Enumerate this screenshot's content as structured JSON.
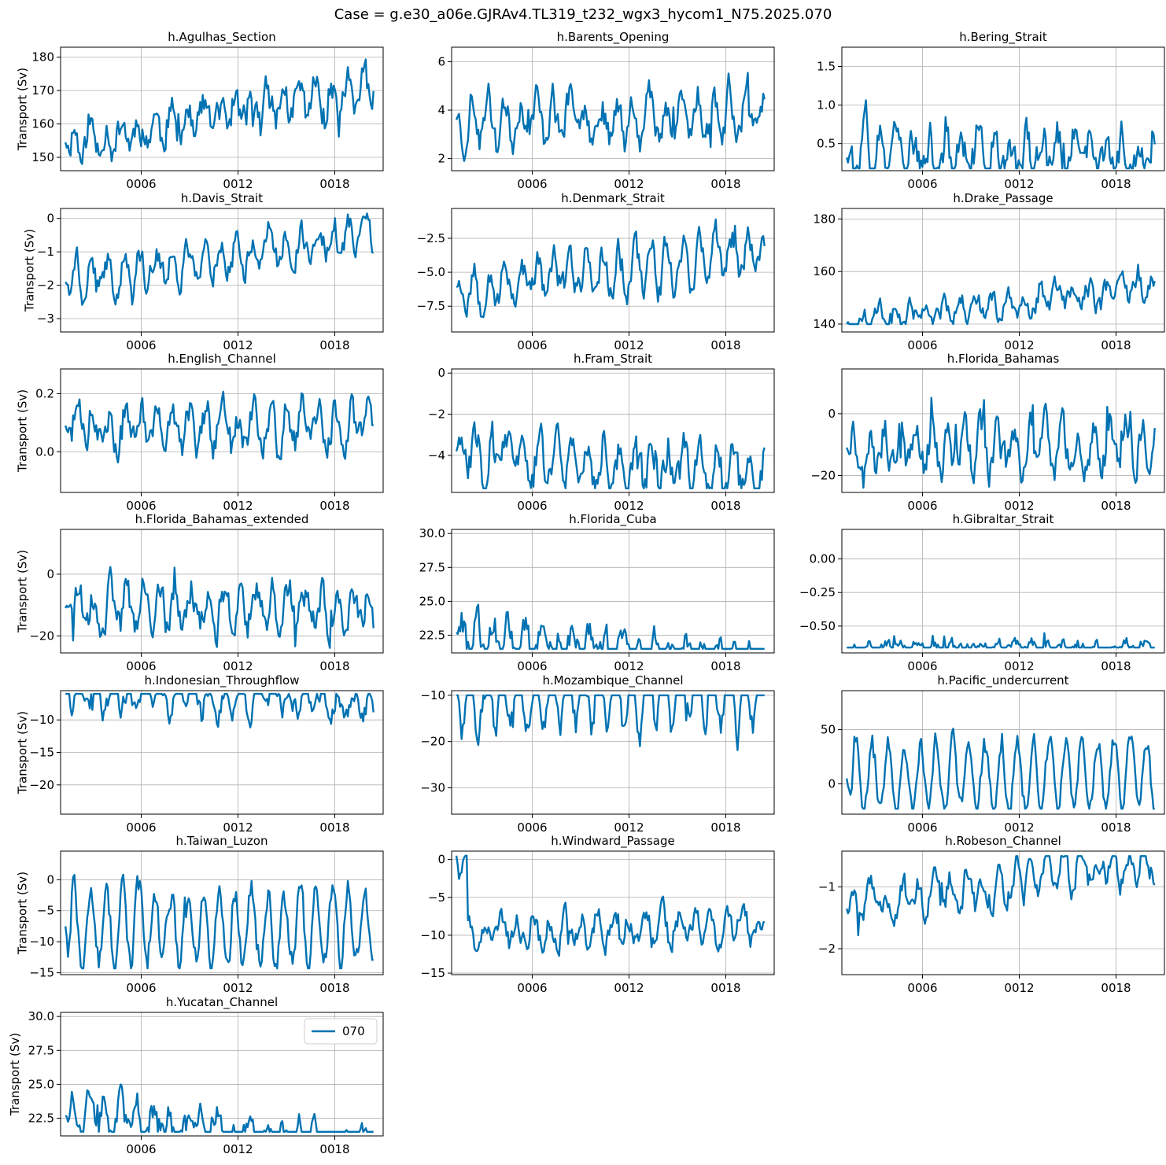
{
  "figure": {
    "suptitle": "Case = g.e30_a06e.GJRAv4.TL319_t232_wgx3_hycom1_N75.2025.070",
    "ylabel": "Transport (Sv)",
    "legend": {
      "label": "070",
      "color": "#0072b2",
      "placement": "upper right of h.Yucatan_Channel panel"
    },
    "line_color": "#0072b2",
    "grid_color": "#b0b0b0"
  },
  "chart_data": [
    {
      "type": "line",
      "title": "h.Agulhas_Section",
      "ylabel": "Transport (Sv)",
      "x_range": [
        1,
        21
      ],
      "xticks": [
        {
          "value": 6,
          "label": "0006"
        },
        {
          "value": 12,
          "label": "0012"
        },
        {
          "value": 18,
          "label": "0018"
        }
      ],
      "ylim": [
        146,
        183
      ],
      "yticks": [
        {
          "value": 150,
          "label": "150"
        },
        {
          "value": 160,
          "label": "160"
        },
        {
          "value": 170,
          "label": "170"
        },
        {
          "value": 180,
          "label": "180"
        }
      ],
      "grid": true,
      "series": {
        "y0": 154.5,
        "drift": 16,
        "amp": 4,
        "noise": 4.5,
        "spike": 6,
        "seed": 11,
        "min": 148,
        "max": 182
      }
    },
    {
      "type": "line",
      "title": "h.Barents_Opening",
      "ylabel": "",
      "x_range": [
        1,
        21
      ],
      "xticks": [
        {
          "value": 6,
          "label": "0006"
        },
        {
          "value": 12,
          "label": "0012"
        },
        {
          "value": 18,
          "label": "0018"
        }
      ],
      "ylim": [
        1.5,
        6.6
      ],
      "yticks": [
        {
          "value": 2,
          "label": "2"
        },
        {
          "value": 4,
          "label": "4"
        },
        {
          "value": 6,
          "label": "6"
        }
      ],
      "grid": true,
      "series": {
        "y0": 3.6,
        "drift": 0.3,
        "amp": 0.9,
        "noise": 0.6,
        "spike": 1.2,
        "seed": 23,
        "min": 1.7,
        "max": 6.3
      }
    },
    {
      "type": "line",
      "title": "h.Bering_Strait",
      "ylabel": "",
      "x_range": [
        1,
        21
      ],
      "xticks": [
        {
          "value": 6,
          "label": "0006"
        },
        {
          "value": 12,
          "label": "0012"
        },
        {
          "value": 18,
          "label": "0018"
        }
      ],
      "ylim": [
        0.15,
        1.75
      ],
      "yticks": [
        {
          "value": 0.5,
          "label": "0.5"
        },
        {
          "value": 1.0,
          "label": "1.0"
        },
        {
          "value": 1.5,
          "label": "1.5"
        }
      ],
      "grid": true,
      "series": {
        "y0": 0.32,
        "drift": 0.0,
        "amp": 0.25,
        "noise": 0.22,
        "spike": 0.3,
        "seed": 37,
        "min": 0.18,
        "max": 1.68
      }
    },
    {
      "type": "line",
      "title": "h.Davis_Strait",
      "ylabel": "Transport (Sv)",
      "x_range": [
        1,
        21
      ],
      "xticks": [
        {
          "value": 6,
          "label": "0006"
        },
        {
          "value": 12,
          "label": "0012"
        },
        {
          "value": 18,
          "label": "0018"
        }
      ],
      "ylim": [
        -3.4,
        0.3
      ],
      "yticks": [
        {
          "value": -3,
          "label": "−3"
        },
        {
          "value": -2,
          "label": "−2"
        },
        {
          "value": -1,
          "label": "−1"
        },
        {
          "value": 0,
          "label": "0"
        }
      ],
      "grid": true,
      "series": {
        "y0": -1.9,
        "drift": 1.5,
        "amp": 0.45,
        "noise": 0.35,
        "spike": 0.5,
        "seed": 41,
        "min": -3.3,
        "max": 0.15
      }
    },
    {
      "type": "line",
      "title": "h.Denmark_Strait",
      "ylabel": "",
      "x_range": [
        1,
        21
      ],
      "xticks": [
        {
          "value": 6,
          "label": "0006"
        },
        {
          "value": 12,
          "label": "0012"
        },
        {
          "value": 18,
          "label": "0018"
        }
      ],
      "ylim": [
        -9.4,
        -0.3
      ],
      "yticks": [
        {
          "value": -7.5,
          "label": "−7.5"
        },
        {
          "value": -5.0,
          "label": "−5.0"
        },
        {
          "value": -2.5,
          "label": "−2.5"
        }
      ],
      "grid": true,
      "series": {
        "y0": -6.1,
        "drift": 2.5,
        "amp": 1.3,
        "noise": 1.0,
        "spike": 1.4,
        "seed": 53,
        "min": -8.9,
        "max": -0.8
      }
    },
    {
      "type": "line",
      "title": "h.Drake_Passage",
      "ylabel": "",
      "x_range": [
        1,
        21
      ],
      "xticks": [
        {
          "value": 6,
          "label": "0006"
        },
        {
          "value": 12,
          "label": "0012"
        },
        {
          "value": 18,
          "label": "0018"
        }
      ],
      "ylim": [
        137,
        184
      ],
      "yticks": [
        {
          "value": 140,
          "label": "140"
        },
        {
          "value": 160,
          "label": "160"
        },
        {
          "value": 180,
          "label": "180"
        }
      ],
      "grid": true,
      "series": {
        "y0": 140,
        "drift": 14,
        "amp": 3.5,
        "noise": 3.5,
        "spike": 5,
        "seed": 61,
        "min": 140,
        "max": 181.5
      }
    },
    {
      "type": "line",
      "title": "h.English_Channel",
      "ylabel": "Transport (Sv)",
      "x_range": [
        1,
        21
      ],
      "xticks": [
        {
          "value": 6,
          "label": "0006"
        },
        {
          "value": 12,
          "label": "0012"
        },
        {
          "value": 18,
          "label": "0018"
        }
      ],
      "ylim": [
        -0.14,
        0.285
      ],
      "yticks": [
        {
          "value": 0.0,
          "label": "0.0"
        },
        {
          "value": 0.2,
          "label": "0.2"
        }
      ],
      "grid": true,
      "series": {
        "y0": 0.09,
        "drift": 0.0,
        "amp": 0.06,
        "noise": 0.05,
        "spike": 0.08,
        "seed": 71,
        "min": -0.12,
        "max": 0.26
      }
    },
    {
      "type": "line",
      "title": "h.Fram_Strait",
      "ylabel": "",
      "x_range": [
        1,
        21
      ],
      "xticks": [
        {
          "value": 6,
          "label": "0006"
        },
        {
          "value": 12,
          "label": "0012"
        },
        {
          "value": 18,
          "label": "0018"
        }
      ],
      "ylim": [
        -5.8,
        0.2
      ],
      "yticks": [
        {
          "value": -4,
          "label": "−4"
        },
        {
          "value": -2,
          "label": "−2"
        },
        {
          "value": 0,
          "label": "0"
        }
      ],
      "grid": true,
      "series": {
        "y0": -3.8,
        "drift": -1.0,
        "amp": 1.0,
        "noise": 0.8,
        "spike": 1.2,
        "seed": 83,
        "min": -5.6,
        "max": -0.3
      }
    },
    {
      "type": "line",
      "title": "h.Florida_Bahamas",
      "ylabel": "",
      "x_range": [
        1,
        21
      ],
      "xticks": [
        {
          "value": 6,
          "label": "0006"
        },
        {
          "value": 12,
          "label": "0012"
        },
        {
          "value": 18,
          "label": "0018"
        }
      ],
      "ylim": [
        -25.5,
        14.5
      ],
      "yticks": [
        {
          "value": -20,
          "label": "−20"
        },
        {
          "value": 0,
          "label": "0"
        }
      ],
      "grid": true,
      "series": {
        "y0": -11,
        "drift": 0,
        "amp": 6,
        "noise": 5,
        "spike": 9,
        "seed": 97,
        "min": -24,
        "max": 13
      }
    },
    {
      "type": "line",
      "title": "h.Florida_Bahamas_extended",
      "ylabel": "Transport (Sv)",
      "x_range": [
        1,
        21
      ],
      "xticks": [
        {
          "value": 6,
          "label": "0006"
        },
        {
          "value": 12,
          "label": "0012"
        },
        {
          "value": 18,
          "label": "0018"
        }
      ],
      "ylim": [
        -25.5,
        14.5
      ],
      "yticks": [
        {
          "value": -20,
          "label": "−20"
        },
        {
          "value": 0,
          "label": "0"
        }
      ],
      "grid": true,
      "series": {
        "y0": -11,
        "drift": 0,
        "amp": 6,
        "noise": 5,
        "spike": 9,
        "seed": 101,
        "min": -24,
        "max": 13
      }
    },
    {
      "type": "line",
      "title": "h.Florida_Cuba",
      "ylabel": "",
      "x_range": [
        1,
        21
      ],
      "xticks": [
        {
          "value": 6,
          "label": "0006"
        },
        {
          "value": 12,
          "label": "0012"
        },
        {
          "value": 18,
          "label": "0018"
        }
      ],
      "ylim": [
        21.2,
        30.3
      ],
      "yticks": [
        {
          "value": 22.5,
          "label": "22.5"
        },
        {
          "value": 25.0,
          "label": "25.0"
        },
        {
          "value": 27.5,
          "label": "27.5"
        },
        {
          "value": 30.0,
          "label": "30.0"
        }
      ],
      "grid": true,
      "series": {
        "y0": 22.7,
        "drift": -2.5,
        "amp": 1.1,
        "noise": 1.0,
        "spike": 1.3,
        "seed": 113,
        "min": 21.5,
        "max": 30.0
      }
    },
    {
      "type": "line",
      "title": "h.Gibraltar_Strait",
      "ylabel": "",
      "x_range": [
        1,
        21
      ],
      "xticks": [
        {
          "value": 6,
          "label": "0006"
        },
        {
          "value": 12,
          "label": "0012"
        },
        {
          "value": 18,
          "label": "0018"
        }
      ],
      "ylim": [
        -0.7,
        0.22
      ],
      "yticks": [
        {
          "value": -0.5,
          "label": "−0.50"
        },
        {
          "value": -0.25,
          "label": "−0.25"
        },
        {
          "value": 0.0,
          "label": "0.00"
        }
      ],
      "grid": true,
      "series": {
        "y0": -0.66,
        "drift": 0,
        "amp": 0.03,
        "noise": 0.04,
        "spike": 0.1,
        "seed": 127,
        "min": -0.66,
        "max": 0.19
      }
    },
    {
      "type": "line",
      "title": "h.Indonesian_Throughflow",
      "ylabel": "Transport (Sv)",
      "x_range": [
        1,
        21
      ],
      "xticks": [
        {
          "value": 6,
          "label": "0006"
        },
        {
          "value": 12,
          "label": "0012"
        },
        {
          "value": 18,
          "label": "0018"
        }
      ],
      "ylim": [
        -24.5,
        -5.5
      ],
      "yticks": [
        {
          "value": -20,
          "label": "−20"
        },
        {
          "value": -15,
          "label": "−15"
        },
        {
          "value": -10,
          "label": "−10"
        }
      ],
      "grid": true,
      "series": {
        "y0": -6,
        "drift": -1.5,
        "amp": 2.2,
        "noise": 1.6,
        "spike": 2.5,
        "seed": 131,
        "min": -23.8,
        "max": -6
      }
    },
    {
      "type": "line",
      "title": "h.Mozambique_Channel",
      "ylabel": "",
      "x_range": [
        1,
        21
      ],
      "xticks": [
        {
          "value": 6,
          "label": "0006"
        },
        {
          "value": 12,
          "label": "0012"
        },
        {
          "value": 18,
          "label": "0018"
        }
      ],
      "ylim": [
        -35.7,
        -9.0
      ],
      "yticks": [
        {
          "value": -30,
          "label": "−30"
        },
        {
          "value": -20,
          "label": "−20"
        },
        {
          "value": -10,
          "label": "−10"
        }
      ],
      "grid": true,
      "series": {
        "y0": -10,
        "drift": 0,
        "amp": 7,
        "noise": 3,
        "spike": 4,
        "seed": 139,
        "min": -34.5,
        "max": -10
      }
    },
    {
      "type": "line",
      "title": "h.Pacific_undercurrent",
      "ylabel": "",
      "x_range": [
        1,
        21
      ],
      "xticks": [
        {
          "value": 6,
          "label": "0006"
        },
        {
          "value": 12,
          "label": "0012"
        },
        {
          "value": 18,
          "label": "0018"
        }
      ],
      "ylim": [
        -28,
        86
      ],
      "yticks": [
        {
          "value": 0,
          "label": "0"
        },
        {
          "value": 50,
          "label": "50"
        }
      ],
      "grid": true,
      "series": {
        "y0": 5,
        "drift": 5,
        "amp": 32,
        "noise": 8,
        "spike": 10,
        "seed": 149,
        "min": -23,
        "max": 81
      }
    },
    {
      "type": "line",
      "title": "h.Taiwan_Luzon",
      "ylabel": "Transport (Sv)",
      "x_range": [
        1,
        21
      ],
      "xticks": [
        {
          "value": 6,
          "label": "0006"
        },
        {
          "value": 12,
          "label": "0012"
        },
        {
          "value": 18,
          "label": "0018"
        }
      ],
      "ylim": [
        -15.3,
        4.6
      ],
      "yticks": [
        {
          "value": -15,
          "label": "−15"
        },
        {
          "value": -10,
          "label": "−10"
        },
        {
          "value": -5,
          "label": "−5"
        },
        {
          "value": 0,
          "label": "0"
        }
      ],
      "grid": true,
      "series": {
        "y0": -7.5,
        "drift": 0,
        "amp": 6,
        "noise": 2,
        "spike": 3,
        "seed": 157,
        "min": -14.3,
        "max": 3.6
      }
    },
    {
      "type": "line",
      "title": "h.Windward_Passage",
      "ylabel": "",
      "x_range": [
        1,
        21
      ],
      "xticks": [
        {
          "value": 6,
          "label": "0006"
        },
        {
          "value": 12,
          "label": "0012"
        },
        {
          "value": 18,
          "label": "0018"
        }
      ],
      "ylim": [
        -15.2,
        1.1
      ],
      "yticks": [
        {
          "value": -15,
          "label": "−15"
        },
        {
          "value": -10,
          "label": "−10"
        },
        {
          "value": -5,
          "label": "−5"
        },
        {
          "value": 0,
          "label": "0"
        }
      ],
      "grid": true,
      "series": {
        "y0": 0.5,
        "drift": 0.5,
        "amp": 1.8,
        "noise": 1.4,
        "spike": 2,
        "seed": 163,
        "min": -14.2,
        "max": 0.5,
        "settle": -9.5
      }
    },
    {
      "type": "line",
      "title": "h.Robeson_Channel",
      "ylabel": "",
      "x_range": [
        1,
        21
      ],
      "xticks": [
        {
          "value": 6,
          "label": "0006"
        },
        {
          "value": 12,
          "label": "0012"
        },
        {
          "value": 18,
          "label": "0018"
        }
      ],
      "ylim": [
        -2.42,
        -0.42
      ],
      "yticks": [
        {
          "value": -2,
          "label": "−2"
        },
        {
          "value": -1,
          "label": "−1"
        }
      ],
      "grid": true,
      "series": {
        "y0": -1.35,
        "drift": 0.8,
        "amp": 0.25,
        "noise": 0.2,
        "spike": 0.25,
        "seed": 173,
        "min": -2.3,
        "max": -0.5
      }
    },
    {
      "type": "line",
      "title": "h.Yucatan_Channel",
      "ylabel": "Transport (Sv)",
      "x_range": [
        1,
        21
      ],
      "xticks": [
        {
          "value": 6,
          "label": "0006"
        },
        {
          "value": 12,
          "label": "0012"
        },
        {
          "value": 18,
          "label": "0018"
        }
      ],
      "ylim": [
        21.2,
        30.3
      ],
      "yticks": [
        {
          "value": 22.5,
          "label": "22.5"
        },
        {
          "value": 25.0,
          "label": "25.0"
        },
        {
          "value": 27.5,
          "label": "27.5"
        },
        {
          "value": 30.0,
          "label": "30.0"
        }
      ],
      "grid": true,
      "legend": "070",
      "series": {
        "y0": 22.7,
        "drift": -2.5,
        "amp": 1.1,
        "noise": 1.0,
        "spike": 1.3,
        "seed": 181,
        "min": 21.5,
        "max": 30.0
      }
    }
  ]
}
